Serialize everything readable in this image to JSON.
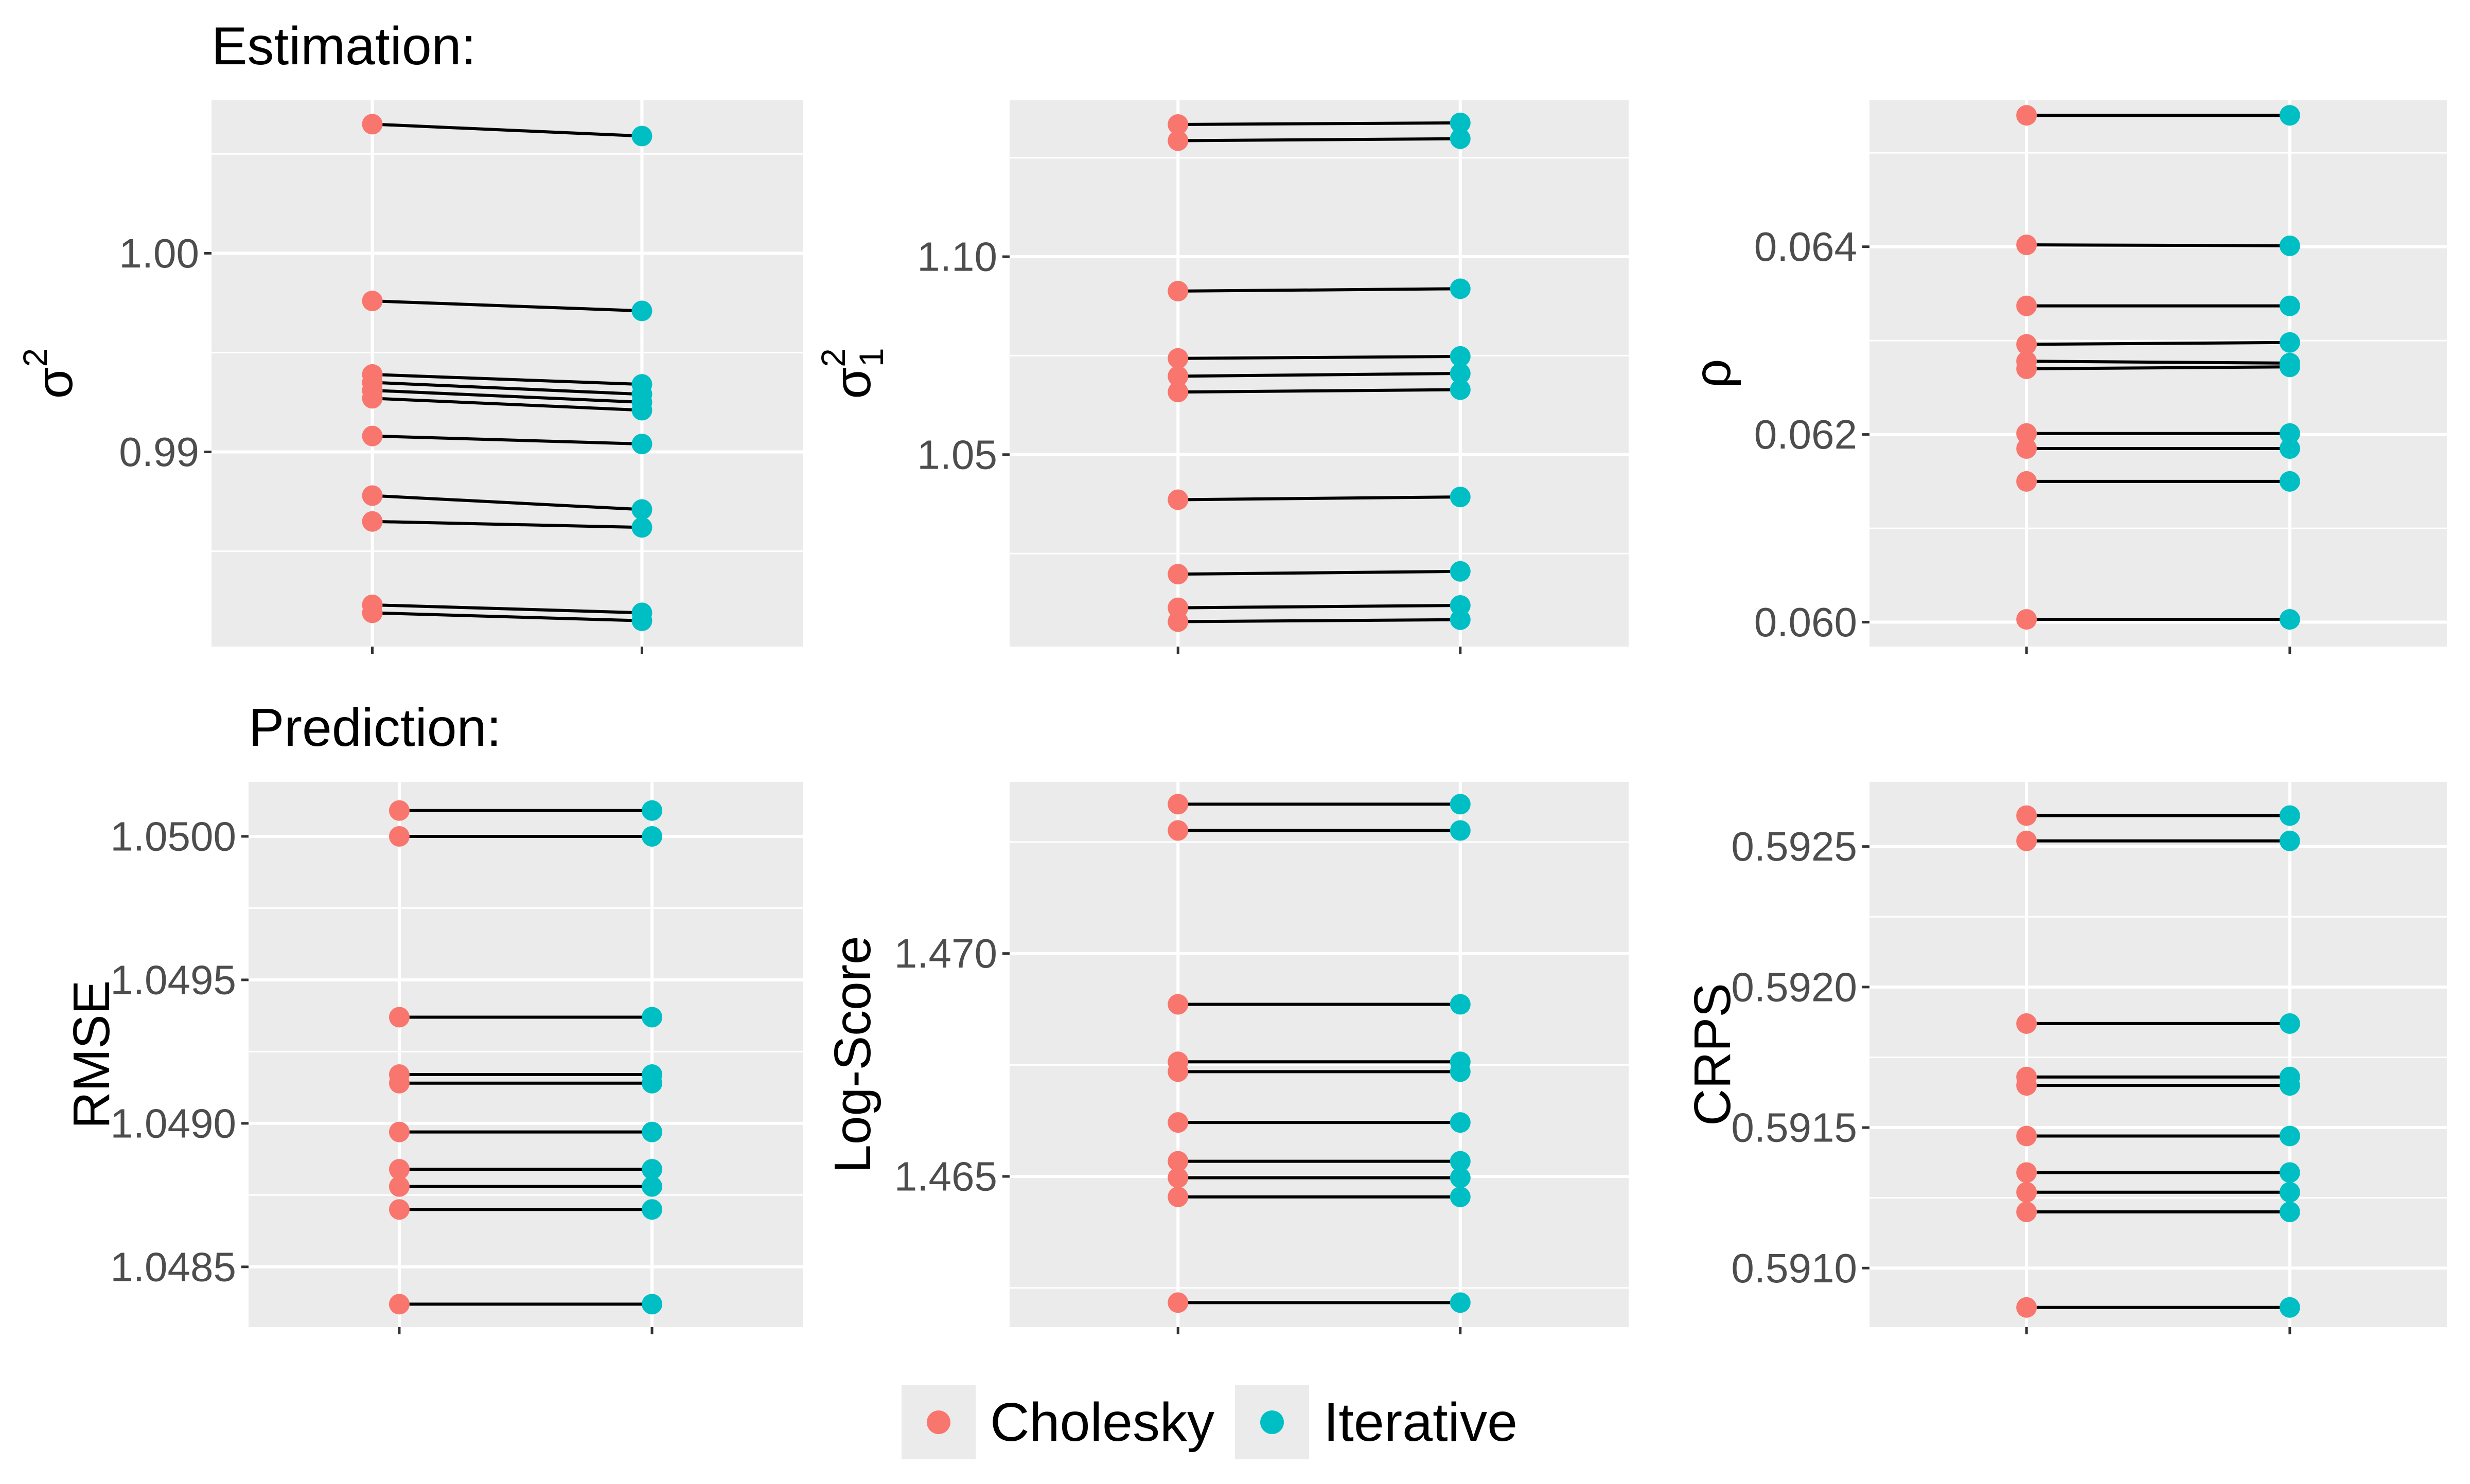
{
  "section_titles": {
    "estimation": "Estimation:",
    "prediction": "Prediction:"
  },
  "legend": {
    "items": [
      {
        "label": "Cholesky",
        "color": "#F8766D"
      },
      {
        "label": "Iterative",
        "color": "#00BFC4"
      }
    ]
  },
  "colors": {
    "panel_bg": "#EBEBEB",
    "grid": "#FFFFFF",
    "cholesky": "#F8766D",
    "iterative": "#00BFC4",
    "segment": "#000000",
    "tick_text": "#4D4D4D"
  },
  "chart_data": [
    {
      "id": "sigma2",
      "type": "scatter",
      "title": "",
      "xlabel": "",
      "ylabel": "σ²",
      "ylabel_base": "σ",
      "ylabel_sup": "2",
      "ylabel_sub": "",
      "ylim": [
        0.9802,
        1.0077
      ],
      "y_ticks": [
        0.99,
        1.0
      ],
      "y_tick_labels": [
        "0.99",
        "1.00"
      ],
      "series": [
        {
          "name": "Cholesky",
          "values": [
            1.0065,
            0.9976,
            0.9939,
            0.9935,
            0.9931,
            0.9927,
            0.9908,
            0.9878,
            0.9865,
            0.9823,
            0.9819
          ]
        },
        {
          "name": "Iterative",
          "values": [
            1.0059,
            0.9971,
            0.9934,
            0.9929,
            0.9925,
            0.9921,
            0.9904,
            0.9871,
            0.9862,
            0.9819,
            0.9815
          ]
        }
      ]
    },
    {
      "id": "sigma1",
      "type": "scatter",
      "title": "",
      "xlabel": "",
      "ylabel": "σ²₁",
      "ylabel_base": "σ",
      "ylabel_sup": "2",
      "ylabel_sub": "1",
      "ylim": [
        1.0015,
        1.1395
      ],
      "y_ticks": [
        1.05,
        1.1
      ],
      "y_tick_labels": [
        "1.05",
        "1.10"
      ],
      "series": [
        {
          "name": "Cholesky",
          "values": [
            1.1334,
            1.1293,
            1.0913,
            1.0743,
            1.0698,
            1.0658,
            1.0386,
            1.0198,
            1.0113,
            1.0078
          ]
        },
        {
          "name": "Iterative",
          "values": [
            1.1338,
            1.1298,
            1.0919,
            1.0748,
            1.0705,
            1.0664,
            1.0393,
            1.0205,
            1.0119,
            1.0083
          ]
        }
      ]
    },
    {
      "id": "rho",
      "type": "scatter",
      "title": "",
      "xlabel": "",
      "ylabel": "ρ",
      "ylabel_base": "ρ",
      "ylabel_sup": "",
      "ylabel_sub": "",
      "ylim": [
        0.05974,
        0.06556
      ],
      "y_ticks": [
        0.06,
        0.062,
        0.064
      ],
      "y_tick_labels": [
        "0.060",
        "0.062",
        "0.064"
      ],
      "series": [
        {
          "name": "Cholesky",
          "values": [
            0.0654,
            0.06402,
            0.06337,
            0.06296,
            0.06278,
            0.0627,
            0.06201,
            0.06185,
            0.0615,
            0.06003
          ]
        },
        {
          "name": "Iterative",
          "values": [
            0.0654,
            0.06401,
            0.06337,
            0.06298,
            0.06276,
            0.06272,
            0.06201,
            0.06185,
            0.0615,
            0.06003
          ]
        }
      ]
    },
    {
      "id": "rmse",
      "type": "scatter",
      "title": "",
      "xlabel": "",
      "ylabel": "RMSE",
      "ylabel_base": "RMSE",
      "ylabel_sup": "",
      "ylabel_sub": "",
      "ylim": [
        1.04829,
        1.05019
      ],
      "y_ticks": [
        1.0485,
        1.049,
        1.0495,
        1.05
      ],
      "y_tick_labels": [
        "1.0485",
        "1.0490",
        "1.0495",
        "1.0500"
      ],
      "series": [
        {
          "name": "Cholesky",
          "values": [
            1.05009,
            1.05,
            1.04937,
            1.04917,
            1.04914,
            1.04897,
            1.04884,
            1.04878,
            1.0487,
            1.04837
          ]
        },
        {
          "name": "Iterative",
          "values": [
            1.05009,
            1.05,
            1.04937,
            1.04917,
            1.04914,
            1.04897,
            1.04884,
            1.04878,
            1.0487,
            1.04837
          ]
        }
      ]
    },
    {
      "id": "logscore",
      "type": "scatter",
      "title": "",
      "xlabel": "",
      "ylabel": "Log-Score",
      "ylabel_base": "Log-Score",
      "ylabel_sup": "",
      "ylabel_sub": "",
      "ylim": [
        1.46162,
        1.47385
      ],
      "y_ticks": [
        1.465,
        1.47
      ],
      "y_tick_labels": [
        "1.465",
        "1.470"
      ],
      "series": [
        {
          "name": "Cholesky",
          "values": [
            1.47335,
            1.47276,
            1.46886,
            1.46757,
            1.46735,
            1.46621,
            1.46534,
            1.46497,
            1.46454,
            1.46217
          ]
        },
        {
          "name": "Iterative",
          "values": [
            1.47335,
            1.47276,
            1.46886,
            1.46757,
            1.46735,
            1.46621,
            1.46534,
            1.46497,
            1.46454,
            1.46217
          ]
        }
      ]
    },
    {
      "id": "crps",
      "type": "scatter",
      "title": "",
      "xlabel": "",
      "ylabel": "CRPS",
      "ylabel_base": "CRPS",
      "ylabel_sup": "",
      "ylabel_sub": "",
      "ylim": [
        0.59079,
        0.59273
      ],
      "y_ticks": [
        0.591,
        0.5915,
        0.592,
        0.5925
      ],
      "y_tick_labels": [
        "0.5910",
        "0.5915",
        "0.5920",
        "0.5925"
      ],
      "series": [
        {
          "name": "Cholesky",
          "values": [
            0.59261,
            0.59252,
            0.59187,
            0.59168,
            0.59165,
            0.59147,
            0.59134,
            0.59127,
            0.5912,
            0.59086
          ]
        },
        {
          "name": "Iterative",
          "values": [
            0.59261,
            0.59252,
            0.59187,
            0.59168,
            0.59165,
            0.59147,
            0.59134,
            0.59127,
            0.5912,
            0.59086
          ]
        }
      ]
    }
  ]
}
